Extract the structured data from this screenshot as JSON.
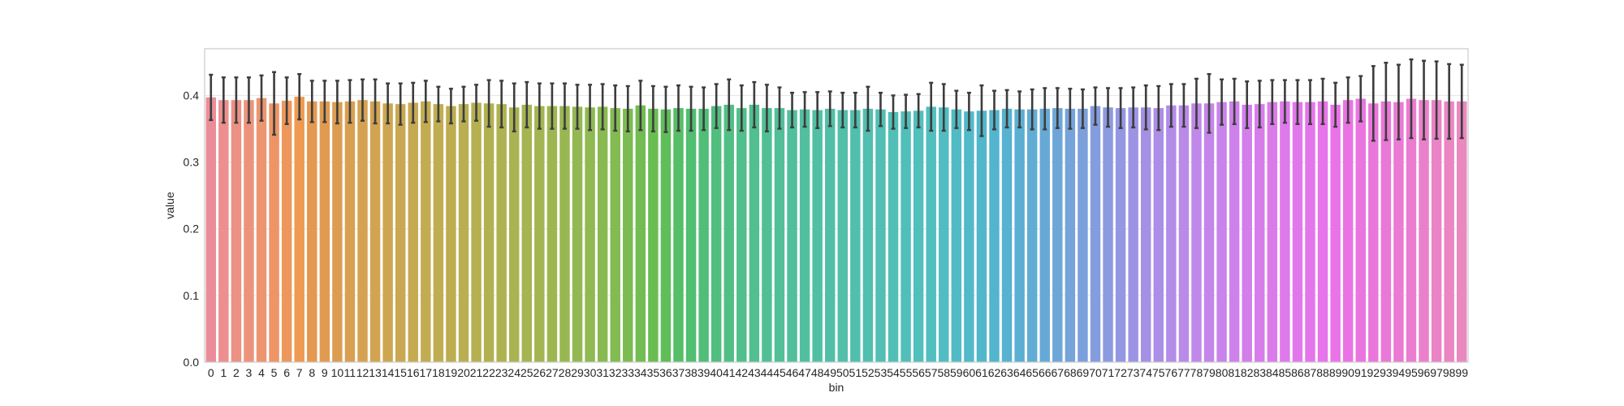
{
  "chart_data": {
    "type": "bar",
    "title": "",
    "xlabel": "bin",
    "ylabel": "value",
    "ylim": [
      0,
      0.47
    ],
    "yticks": [
      "0.0",
      "0.1",
      "0.2",
      "0.3",
      "0.4"
    ],
    "grid": true,
    "categories": [
      "0",
      "1",
      "2",
      "3",
      "4",
      "5",
      "6",
      "7",
      "8",
      "9",
      "10",
      "11",
      "12",
      "13",
      "14",
      "15",
      "16",
      "17",
      "18",
      "19",
      "20",
      "21",
      "22",
      "23",
      "24",
      "25",
      "26",
      "27",
      "28",
      "29",
      "30",
      "31",
      "32",
      "33",
      "34",
      "35",
      "36",
      "37",
      "38",
      "39",
      "40",
      "41",
      "42",
      "43",
      "44",
      "45",
      "46",
      "47",
      "48",
      "49",
      "50",
      "51",
      "52",
      "53",
      "54",
      "55",
      "56",
      "57",
      "58",
      "59",
      "60",
      "61",
      "62",
      "63",
      "64",
      "65",
      "66",
      "67",
      "68",
      "69",
      "70",
      "71",
      "72",
      "73",
      "74",
      "75",
      "76",
      "77",
      "78",
      "79",
      "80",
      "81",
      "82",
      "83",
      "84",
      "85",
      "86",
      "87",
      "88",
      "89",
      "90",
      "91",
      "92",
      "93",
      "94",
      "95",
      "96",
      "97",
      "98",
      "99"
    ],
    "values": [
      0.397,
      0.393,
      0.393,
      0.393,
      0.396,
      0.388,
      0.392,
      0.398,
      0.391,
      0.391,
      0.39,
      0.391,
      0.393,
      0.391,
      0.388,
      0.387,
      0.389,
      0.391,
      0.387,
      0.384,
      0.387,
      0.389,
      0.388,
      0.387,
      0.382,
      0.386,
      0.384,
      0.384,
      0.384,
      0.383,
      0.382,
      0.383,
      0.381,
      0.38,
      0.385,
      0.38,
      0.379,
      0.381,
      0.38,
      0.38,
      0.384,
      0.386,
      0.381,
      0.386,
      0.381,
      0.381,
      0.378,
      0.379,
      0.378,
      0.38,
      0.378,
      0.378,
      0.38,
      0.379,
      0.375,
      0.376,
      0.377,
      0.383,
      0.382,
      0.379,
      0.376,
      0.377,
      0.378,
      0.38,
      0.379,
      0.379,
      0.38,
      0.381,
      0.38,
      0.38,
      0.384,
      0.382,
      0.381,
      0.382,
      0.382,
      0.381,
      0.385,
      0.385,
      0.388,
      0.388,
      0.39,
      0.391,
      0.386,
      0.387,
      0.39,
      0.391,
      0.39,
      0.39,
      0.391,
      0.386,
      0.393,
      0.395,
      0.388,
      0.391,
      0.39,
      0.395,
      0.393,
      0.393,
      0.391,
      0.391
    ],
    "errors": [
      0.034,
      0.034,
      0.034,
      0.034,
      0.034,
      0.047,
      0.035,
      0.034,
      0.031,
      0.031,
      0.032,
      0.032,
      0.031,
      0.033,
      0.03,
      0.031,
      0.03,
      0.031,
      0.026,
      0.026,
      0.026,
      0.027,
      0.035,
      0.035,
      0.036,
      0.034,
      0.034,
      0.034,
      0.034,
      0.033,
      0.034,
      0.034,
      0.034,
      0.034,
      0.037,
      0.034,
      0.034,
      0.034,
      0.033,
      0.032,
      0.033,
      0.038,
      0.034,
      0.034,
      0.035,
      0.031,
      0.026,
      0.026,
      0.027,
      0.026,
      0.026,
      0.026,
      0.033,
      0.025,
      0.025,
      0.025,
      0.025,
      0.036,
      0.035,
      0.028,
      0.028,
      0.038,
      0.029,
      0.028,
      0.027,
      0.03,
      0.031,
      0.03,
      0.03,
      0.029,
      0.028,
      0.029,
      0.03,
      0.03,
      0.033,
      0.033,
      0.032,
      0.032,
      0.037,
      0.044,
      0.034,
      0.034,
      0.035,
      0.035,
      0.033,
      0.032,
      0.033,
      0.033,
      0.034,
      0.033,
      0.034,
      0.034,
      0.056,
      0.058,
      0.056,
      0.059,
      0.059,
      0.058,
      0.056,
      0.055
    ],
    "bar_colors": [
      "#eb8d98",
      "#ec8f8e",
      "#ec9183",
      "#ed937b",
      "#ed9571",
      "#ee9465",
      "#ee975c",
      "#ef9a52",
      "#e59950",
      "#e19b51",
      "#dc9d51",
      "#d9a051",
      "#d5a251",
      "#d2a451",
      "#cea651",
      "#caa851",
      "#c7a951",
      "#c3ab51",
      "#c0ad51",
      "#bdad51",
      "#b9af51",
      "#b6b051",
      "#b2b151",
      "#aeb251",
      "#aab351",
      "#a6b451",
      "#a2b551",
      "#9eb651",
      "#99b751",
      "#94b851",
      "#8fb951",
      "#89ba51",
      "#83bb51",
      "#7cbb51",
      "#73bc51",
      "#6abd51",
      "#5fbd5a",
      "#56be66",
      "#51be70",
      "#51be78",
      "#51be7f",
      "#51bf85",
      "#51bf8b",
      "#51bf90",
      "#51bf94",
      "#51bf98",
      "#51bf9c",
      "#51bfa0",
      "#51bfa3",
      "#51bfa7",
      "#51bfaa",
      "#51bfad",
      "#51bfb0",
      "#51bfb3",
      "#51bfb6",
      "#51bfb9",
      "#51bfbc",
      "#51bfbf",
      "#51bdc2",
      "#51bbc5",
      "#51b9c8",
      "#51b7cb",
      "#52b5cd",
      "#56b2d0",
      "#5bafd2",
      "#61acd4",
      "#67a9d6",
      "#6ea6d8",
      "#75a3da",
      "#7ca0dc",
      "#849dde",
      "#8c9ae0",
      "#9497e2",
      "#9c94e3",
      "#a491e5",
      "#ab8ee6",
      "#b28ce7",
      "#b98ae8",
      "#bf88e9",
      "#c486e9",
      "#c983ea",
      "#ce81ea",
      "#d37feb",
      "#d77deb",
      "#db7beb",
      "#de79eb",
      "#e277eb",
      "#e575eb",
      "#e874ea",
      "#ea73e8",
      "#ea73e4",
      "#ea74e0",
      "#ea76dc",
      "#ea78d8",
      "#ea7ad4",
      "#ea7dd0",
      "#ea80cc",
      "#ea83c7",
      "#ea86c3",
      "#ea88bf"
    ]
  }
}
